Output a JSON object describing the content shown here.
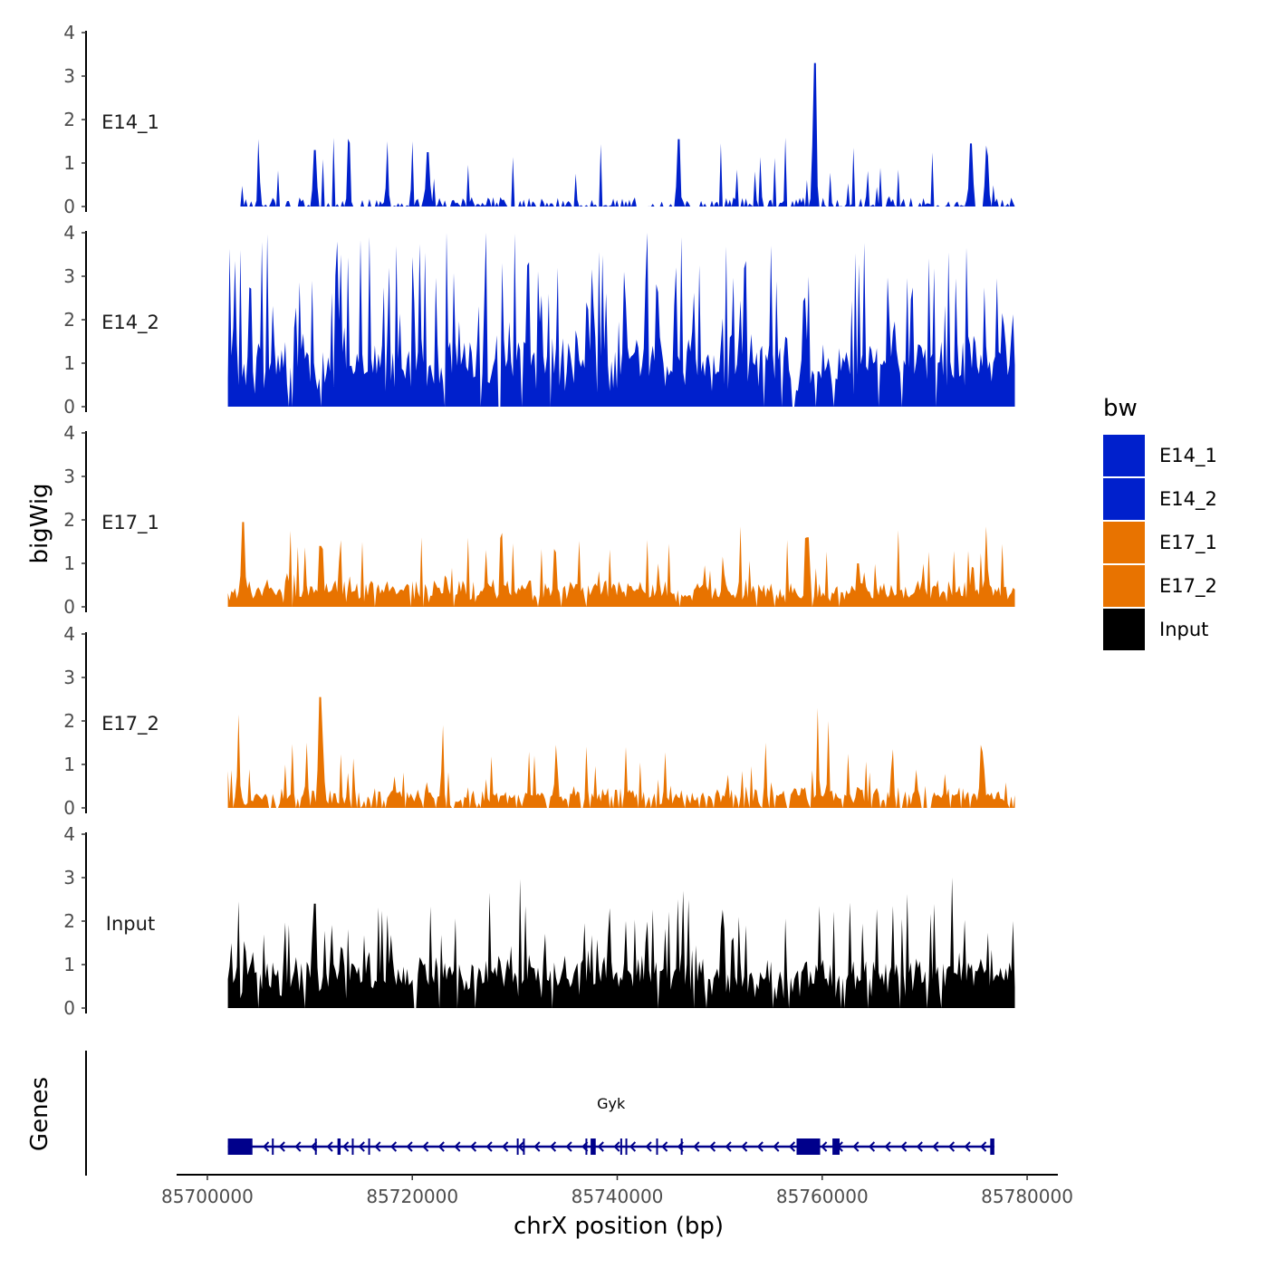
{
  "chart_data": {
    "type": "area",
    "chromosome": "chrX",
    "xlabel": "chrX position (bp)",
    "ylabel": "bigWig",
    "genes_label": "Genes",
    "xlim": [
      85697000,
      85783000
    ],
    "data_range": [
      85702000,
      85778800
    ],
    "x_ticks": [
      85700000,
      85720000,
      85740000,
      85760000,
      85780000
    ],
    "x_tick_labels": [
      "85700000",
      "85720000",
      "85740000",
      "85760000",
      "85780000"
    ],
    "ylim": [
      0,
      4
    ],
    "y_ticks": [
      0,
      1,
      2,
      3,
      4
    ],
    "y_tick_labels": [
      "0",
      "1",
      "2",
      "3",
      "4"
    ],
    "tracks": [
      {
        "name": "E14_1",
        "color": "#0020CC",
        "seed": 11,
        "base": 0.05,
        "noise": 0.25,
        "spike_prob": 0.12,
        "spike_max": 1.5,
        "zero_prob": 0.45,
        "peaks": [
          [
            85705000,
            1.55
          ],
          [
            85710500,
            1.3
          ],
          [
            85717500,
            1.5
          ],
          [
            85720000,
            1.5
          ],
          [
            85721500,
            1.25
          ],
          [
            85746000,
            1.55
          ],
          [
            85759300,
            3.3
          ],
          [
            85774500,
            1.45
          ],
          [
            85776000,
            1.4
          ]
        ]
      },
      {
        "name": "E14_2",
        "color": "#0020CC",
        "seed": 23,
        "base": 1.0,
        "noise": 0.6,
        "spike_prob": 0.3,
        "spike_max": 3.2,
        "zero_prob": 0.04,
        "peaks": [
          [
            85702700,
            3.35
          ],
          [
            85713000,
            3.5
          ],
          [
            85718500,
            3.7
          ],
          [
            85720700,
            3.65
          ],
          [
            85727200,
            3.5
          ],
          [
            85731200,
            3.25
          ],
          [
            85746200,
            3.9
          ],
          [
            85748000,
            3.25
          ],
          [
            85755000,
            3.7
          ],
          [
            85773000,
            2.95
          ],
          [
            85777000,
            2.95
          ]
        ]
      },
      {
        "name": "E17_1",
        "color": "#E87300",
        "seed": 37,
        "base": 0.35,
        "noise": 0.3,
        "spike_prob": 0.15,
        "spike_max": 1.3,
        "zero_prob": 0.03,
        "peaks": [
          [
            85703500,
            1.95
          ],
          [
            85711000,
            1.4
          ],
          [
            85745000,
            1.45
          ],
          [
            85752000,
            1.85
          ],
          [
            85758600,
            1.6
          ],
          [
            85763500,
            1.0
          ],
          [
            85776000,
            1.85
          ]
        ]
      },
      {
        "name": "E17_2",
        "color": "#E87300",
        "seed": 53,
        "base": 0.25,
        "noise": 0.3,
        "spike_prob": 0.13,
        "spike_max": 1.2,
        "zero_prob": 0.18,
        "peaks": [
          [
            85703000,
            2.15
          ],
          [
            85709700,
            1.5
          ],
          [
            85711000,
            2.55
          ],
          [
            85711300,
            1.55
          ],
          [
            85723000,
            1.9
          ],
          [
            85734000,
            1.45
          ],
          [
            85740800,
            1.4
          ],
          [
            85754500,
            1.5
          ],
          [
            85759500,
            2.3
          ],
          [
            85760600,
            2.0
          ],
          [
            85775500,
            1.45
          ]
        ]
      },
      {
        "name": "Input",
        "color": "#000000",
        "seed": 71,
        "base": 0.75,
        "noise": 0.45,
        "spike_prob": 0.25,
        "spike_max": 1.7,
        "zero_prob": 0.03,
        "peaks": [
          [
            85710500,
            2.4
          ],
          [
            85727500,
            2.65
          ],
          [
            85731000,
            2.35
          ],
          [
            85759800,
            2.35
          ],
          [
            85772700,
            3.0
          ]
        ]
      }
    ],
    "gene": {
      "name": "Gyk",
      "start": 85702000,
      "end": 85776800,
      "strand": "-",
      "color": "#00008B",
      "exons": [
        [
          85702000,
          85704400
        ],
        [
          85706300,
          85706450
        ],
        [
          85710500,
          85710650
        ],
        [
          85712700,
          85713000
        ],
        [
          85714100,
          85714250
        ],
        [
          85715700,
          85715850
        ],
        [
          85730200,
          85730350
        ],
        [
          85730800,
          85730950
        ],
        [
          85736900,
          85737050
        ],
        [
          85737400,
          85737900
        ],
        [
          85740300,
          85740450
        ],
        [
          85740800,
          85740950
        ],
        [
          85743800,
          85743950
        ],
        [
          85746200,
          85746350
        ],
        [
          85757500,
          85759800
        ],
        [
          85761000,
          85761700
        ],
        [
          85776400,
          85776800
        ]
      ]
    }
  },
  "legend": {
    "title": "bw",
    "items": [
      {
        "label": "E14_1",
        "color": "#0020CC"
      },
      {
        "label": "E14_2",
        "color": "#0020CC"
      },
      {
        "label": "E17_1",
        "color": "#E87300"
      },
      {
        "label": "E17_2",
        "color": "#E87300"
      },
      {
        "label": "Input",
        "color": "#000000"
      }
    ]
  }
}
